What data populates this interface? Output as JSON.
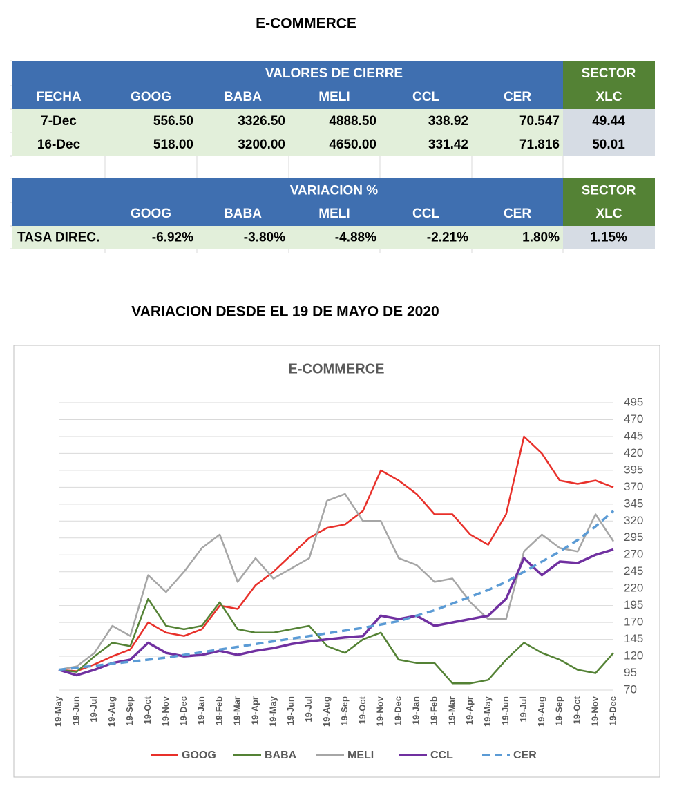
{
  "title": "E-COMMERCE",
  "table1": {
    "group_header": "VALORES DE CIERRE",
    "sector_header": "SECTOR",
    "columns": [
      "FECHA",
      "GOOG",
      "BABA",
      "MELI",
      "CCL",
      "CER",
      "XLC"
    ],
    "rows": [
      [
        "7-Dec",
        "556.50",
        "3326.50",
        "4888.50",
        "338.92",
        "70.547",
        "49.44"
      ],
      [
        "16-Dec",
        "518.00",
        "3200.00",
        "4650.00",
        "331.42",
        "71.816",
        "50.01"
      ]
    ]
  },
  "table2": {
    "group_header": "VARIACION %",
    "sector_header": "SECTOR",
    "columns": [
      "GOOG",
      "BABA",
      "MELI",
      "CCL",
      "CER",
      "XLC"
    ],
    "rows": [
      [
        "TASA DIREC.",
        "-6.92%",
        "-3.80%",
        "-4.88%",
        "-2.21%",
        "1.80%",
        "1.15%"
      ]
    ]
  },
  "subtitle": "VARIACION DESDE EL 19 DE MAYO DE 2020",
  "chart_data": {
    "type": "line",
    "title": "E-COMMERCE",
    "categories": [
      "19-May",
      "19-Jun",
      "19-Jul",
      "19-Aug",
      "19-Sep",
      "19-Oct",
      "19-Nov",
      "19-Dec",
      "19-Jan",
      "19-Feb",
      "19-Mar",
      "19-Apr",
      "19-May",
      "19-Jun",
      "19-Jul",
      "19-Aug",
      "19-Sep",
      "19-Oct",
      "19-Nov",
      "19-Dec",
      "19-Jan",
      "19-Feb",
      "19-Mar",
      "19-Apr",
      "19-May",
      "19-Jun",
      "19-Jul",
      "19-Aug",
      "19-Sep",
      "19-Oct",
      "19-Nov",
      "19-Dec"
    ],
    "series": [
      {
        "name": "GOOG",
        "color": "#e8302a",
        "values": [
          100,
          98,
          108,
          120,
          130,
          170,
          155,
          150,
          160,
          195,
          190,
          225,
          245,
          270,
          295,
          310,
          315,
          335,
          395,
          380,
          360,
          330,
          330,
          300,
          285,
          330,
          445,
          420,
          380,
          375,
          380,
          370
        ]
      },
      {
        "name": "BABA",
        "color": "#548235",
        "values": [
          100,
          97,
          120,
          140,
          135,
          205,
          165,
          160,
          165,
          200,
          160,
          155,
          155,
          160,
          165,
          135,
          125,
          145,
          155,
          115,
          110,
          110,
          80,
          80,
          85,
          115,
          140,
          125,
          115,
          100,
          95,
          125
        ]
      },
      {
        "name": "MELI",
        "color": "#a6a6a6",
        "values": [
          100,
          105,
          125,
          165,
          150,
          240,
          215,
          245,
          280,
          300,
          230,
          265,
          235,
          250,
          265,
          350,
          360,
          320,
          320,
          265,
          255,
          230,
          235,
          200,
          175,
          175,
          275,
          300,
          280,
          275,
          330,
          290
        ]
      },
      {
        "name": "CCL",
        "color": "#7030a0",
        "width": 3.5,
        "values": [
          100,
          92,
          100,
          110,
          115,
          140,
          125,
          120,
          122,
          128,
          122,
          128,
          132,
          138,
          142,
          145,
          148,
          150,
          180,
          175,
          180,
          165,
          170,
          175,
          180,
          205,
          265,
          240,
          260,
          258,
          270,
          278
        ]
      },
      {
        "name": "CER",
        "color": "#5b9bd5",
        "dash": true,
        "width": 3.5,
        "values": [
          100,
          103,
          106,
          109,
          112,
          115,
          118,
          122,
          126,
          130,
          134,
          138,
          142,
          146,
          150,
          154,
          158,
          162,
          167,
          172,
          180,
          188,
          198,
          208,
          218,
          230,
          245,
          260,
          275,
          292,
          312,
          335
        ]
      }
    ],
    "ylim": [
      70,
      495
    ],
    "yticks": [
      70,
      95,
      120,
      145,
      170,
      195,
      220,
      245,
      270,
      295,
      320,
      345,
      370,
      395,
      420,
      445,
      470,
      495
    ],
    "y_axis_side": "right",
    "grid": true,
    "legend": "bottom"
  }
}
